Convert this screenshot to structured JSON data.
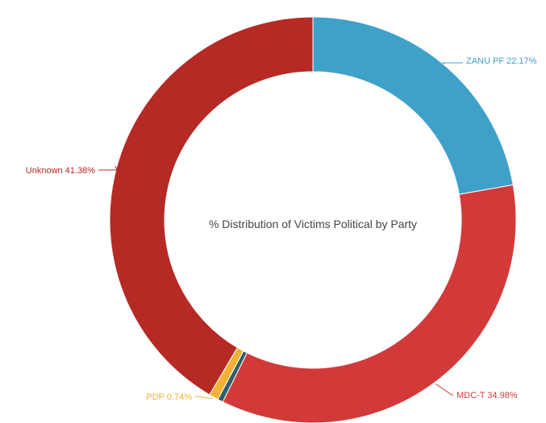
{
  "chart_data": {
    "type": "pie",
    "title": "% Distribution of Victims Political by Party",
    "donut": true,
    "slices": [
      {
        "name": "ZANU PF",
        "value": 22.17,
        "label": "ZANU PF 22.17%",
        "color": "#3fa0c9"
      },
      {
        "name": "MDC-T",
        "value": 34.98,
        "label": "MDC-T 34.98%",
        "color": "#d23a3a"
      },
      {
        "name": "",
        "value": 0.43,
        "label": "",
        "color": "#2f5f6b"
      },
      {
        "name": "PDP",
        "value": 0.74,
        "label": "PDP 0.74%",
        "color": "#f2b134"
      },
      {
        "name": "Unknown",
        "value": 41.38,
        "label": "Unknown 41.38%",
        "color": "#b52a25"
      }
    ]
  }
}
